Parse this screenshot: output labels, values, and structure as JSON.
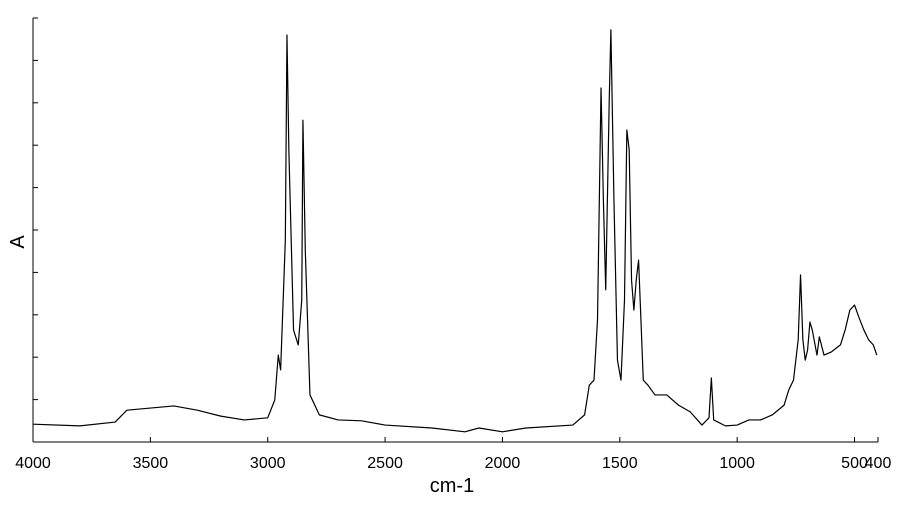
{
  "chart_data": {
    "type": "line",
    "xlabel": "cm-1",
    "ylabel": "A",
    "color": "#000000",
    "xlim": [
      4000,
      400
    ],
    "xticks": [
      4000,
      3500,
      3000,
      2500,
      2000,
      1500,
      1000,
      500,
      400
    ],
    "ylim": [
      0,
      1
    ],
    "yticks": [
      0,
      0.1,
      0.2,
      0.3,
      0.4,
      0.5,
      0.6,
      0.7,
      0.8,
      0.9,
      1
    ],
    "ytick_labels": false,
    "x": [
      4000,
      3800,
      3650,
      3600,
      3500,
      3400,
      3300,
      3200,
      3100,
      3000,
      2970,
      2955,
      2945,
      2925,
      2918,
      2910,
      2890,
      2870,
      2855,
      2850,
      2840,
      2820,
      2780,
      2700,
      2600,
      2500,
      2300,
      2160,
      2100,
      2000,
      1900,
      1700,
      1650,
      1630,
      1610,
      1595,
      1580,
      1570,
      1560,
      1545,
      1538,
      1525,
      1510,
      1495,
      1480,
      1470,
      1460,
      1450,
      1440,
      1430,
      1420,
      1410,
      1400,
      1380,
      1350,
      1300,
      1250,
      1200,
      1150,
      1120,
      1110,
      1100,
      1050,
      1000,
      950,
      900,
      850,
      800,
      780,
      760,
      740,
      730,
      720,
      710,
      700,
      690,
      680,
      660,
      650,
      630,
      600,
      560,
      540,
      520,
      500,
      480,
      460,
      440,
      420,
      405
    ],
    "values": [
      0.042,
      0.038,
      0.047,
      0.075,
      0.08,
      0.085,
      0.075,
      0.061,
      0.052,
      0.057,
      0.099,
      0.205,
      0.17,
      0.476,
      0.96,
      0.689,
      0.264,
      0.229,
      0.335,
      0.759,
      0.453,
      0.111,
      0.064,
      0.052,
      0.05,
      0.04,
      0.033,
      0.024,
      0.033,
      0.024,
      0.033,
      0.04,
      0.064,
      0.134,
      0.146,
      0.288,
      0.835,
      0.571,
      0.359,
      0.807,
      0.972,
      0.571,
      0.193,
      0.146,
      0.335,
      0.736,
      0.689,
      0.382,
      0.311,
      0.382,
      0.429,
      0.288,
      0.146,
      0.134,
      0.111,
      0.111,
      0.087,
      0.071,
      0.04,
      0.057,
      0.151,
      0.052,
      0.038,
      0.04,
      0.052,
      0.052,
      0.064,
      0.087,
      0.123,
      0.146,
      0.241,
      0.394,
      0.241,
      0.193,
      0.217,
      0.283,
      0.264,
      0.205,
      0.248,
      0.205,
      0.212,
      0.229,
      0.264,
      0.311,
      0.323,
      0.292,
      0.264,
      0.241,
      0.229,
      0.205
    ]
  }
}
